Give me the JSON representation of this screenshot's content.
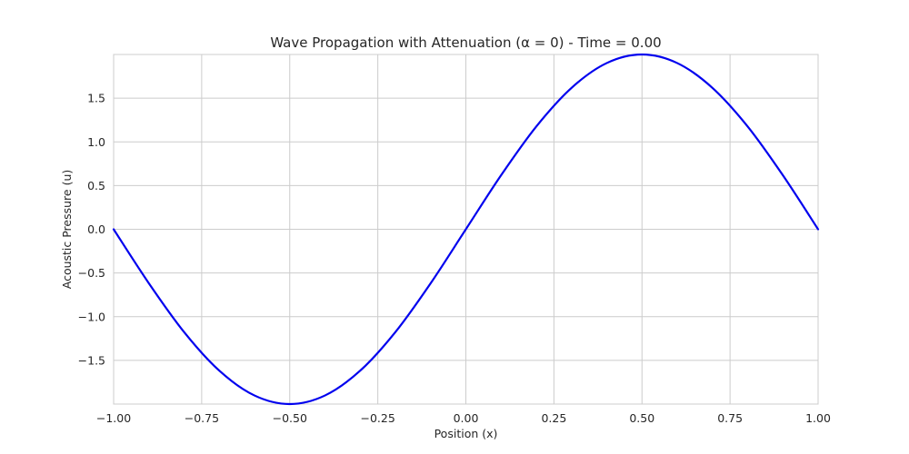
{
  "chart_data": {
    "type": "line",
    "title": "Wave Propagation with Attenuation (α = 0) - Time = 0.00",
    "xlabel": "Position (x)",
    "ylabel": "Acoustic Pressure (u)",
    "xlim": [
      -1.0,
      1.0
    ],
    "ylim": [
      -2.0,
      2.0
    ],
    "x_ticks": [
      "−1.00",
      "−0.75",
      "−0.50",
      "−0.25",
      "0.00",
      "0.25",
      "0.50",
      "0.75",
      "1.00"
    ],
    "x_tick_values": [
      -1.0,
      -0.75,
      -0.5,
      -0.25,
      0.0,
      0.25,
      0.5,
      0.75,
      1.0
    ],
    "y_ticks": [
      "−1.5",
      "−1.0",
      "−0.5",
      "0.0",
      "0.5",
      "1.0",
      "1.5"
    ],
    "y_tick_values": [
      -1.5,
      -1.0,
      -0.5,
      0.0,
      0.5,
      1.0,
      1.5
    ],
    "grid": true,
    "series": [
      {
        "color": "#0000ee",
        "x": [
          -1.0,
          -0.9,
          -0.8,
          -0.7,
          -0.6,
          -0.5,
          -0.4,
          -0.3,
          -0.2,
          -0.1,
          0.0,
          0.1,
          0.2,
          0.3,
          0.4,
          0.5,
          0.6,
          0.7,
          0.8,
          0.9,
          1.0
        ],
        "y": [
          0.0,
          -0.618,
          -1.176,
          -1.618,
          -1.902,
          -2.0,
          -1.902,
          -1.618,
          -1.176,
          -0.618,
          0.0,
          0.618,
          1.176,
          1.618,
          1.902,
          2.0,
          1.902,
          1.618,
          1.176,
          0.618,
          0.0
        ]
      }
    ]
  }
}
